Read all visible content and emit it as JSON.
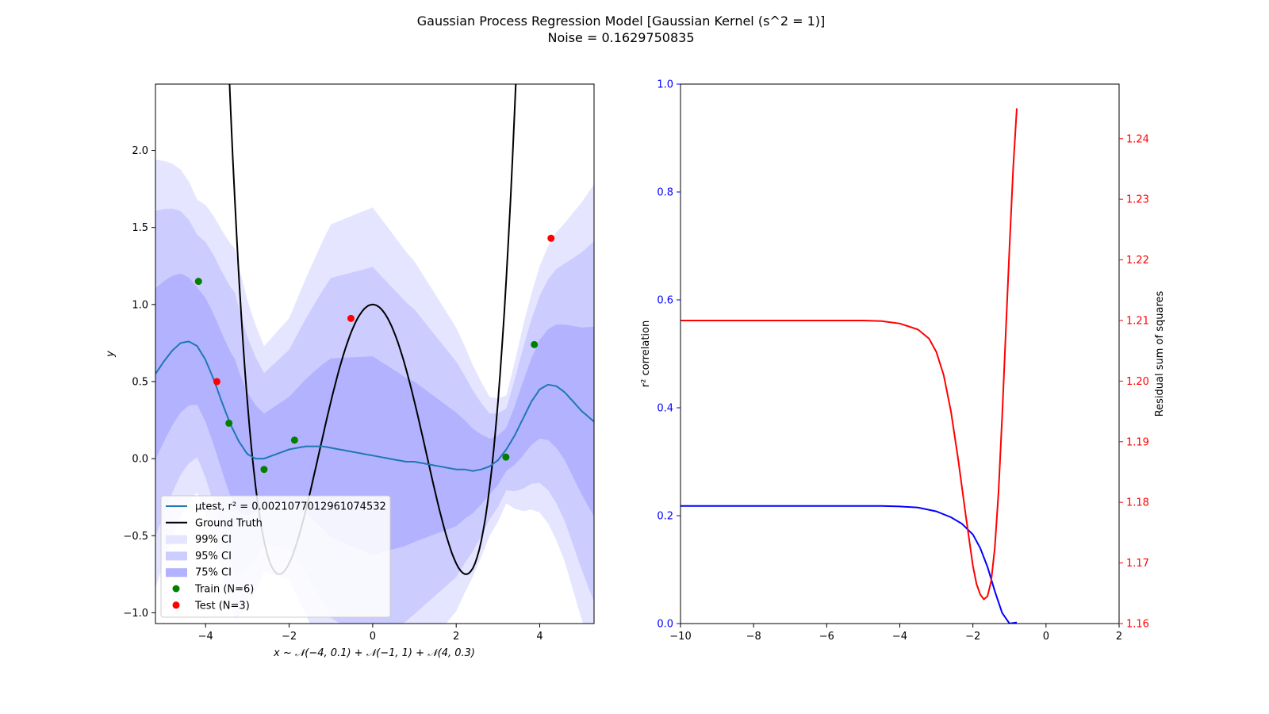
{
  "figure": {
    "title_line1": "Gaussian Process Regression Model [Gaussian Kernel (s^2 = 1)]",
    "title_line2": "Noise = 0.1629750835"
  },
  "chart_data": [
    {
      "type": "line",
      "xlabel": "x ~ 𝒩(−4, 0.1) + 𝒩(−1, 1) + 𝒩(4, 0.3)",
      "ylabel": "y",
      "xlim": [
        -5.2,
        5.3
      ],
      "ylim": [
        -1.07,
        2.43
      ],
      "xticks": [
        -4,
        -2,
        0,
        2,
        4
      ],
      "yticks": [
        -1.0,
        -0.5,
        0.0,
        0.5,
        1.0,
        1.5,
        2.0
      ],
      "legend_position": "lower-left",
      "legend": [
        {
          "label": "μtest, r² = 0.0021077012961074532",
          "kind": "line",
          "color": "#1f77b4"
        },
        {
          "label": "Ground Truth",
          "kind": "line",
          "color": "#000000"
        },
        {
          "label": "99% CI",
          "kind": "patch",
          "color": "#e5e5ff"
        },
        {
          "label": "95% CI",
          "kind": "patch",
          "color": "#ccccff"
        },
        {
          "label": "75% CI",
          "kind": "patch",
          "color": "#b2b2ff"
        },
        {
          "label": "Train (N=6)",
          "kind": "point",
          "color": "#008000"
        },
        {
          "label": "Test (N=3)",
          "kind": "point",
          "color": "#ff0000"
        }
      ],
      "mean": {
        "color": "#1f77b4",
        "x": [
          -5.2,
          -5.0,
          -4.8,
          -4.6,
          -4.4,
          -4.2,
          -4.0,
          -3.8,
          -3.6,
          -3.4,
          -3.2,
          -3.0,
          -2.8,
          -2.6,
          -2.4,
          -2.2,
          -2.0,
          -1.8,
          -1.6,
          -1.4,
          -1.2,
          -1.0,
          -0.8,
          -0.6,
          -0.4,
          -0.2,
          0.0,
          0.2,
          0.4,
          0.6,
          0.8,
          1.0,
          1.2,
          1.4,
          1.6,
          1.8,
          2.0,
          2.2,
          2.4,
          2.6,
          2.8,
          3.0,
          3.2,
          3.4,
          3.6,
          3.8,
          4.0,
          4.2,
          4.4,
          4.6,
          4.8,
          5.0,
          5.3
        ],
        "y": [
          0.55,
          0.63,
          0.7,
          0.75,
          0.76,
          0.73,
          0.64,
          0.51,
          0.36,
          0.22,
          0.11,
          0.03,
          0.0,
          0.0,
          0.02,
          0.04,
          0.06,
          0.07,
          0.08,
          0.08,
          0.08,
          0.07,
          0.06,
          0.05,
          0.04,
          0.03,
          0.02,
          0.01,
          0.0,
          -0.01,
          -0.02,
          -0.02,
          -0.03,
          -0.04,
          -0.05,
          -0.06,
          -0.07,
          -0.07,
          -0.08,
          -0.07,
          -0.05,
          -0.01,
          0.06,
          0.15,
          0.26,
          0.37,
          0.45,
          0.48,
          0.47,
          0.43,
          0.37,
          0.31,
          0.24
        ]
      },
      "ci_halfwidth_x": [
        -5.2,
        -4.2,
        -3.3,
        -2.6,
        -2.0,
        -1.0,
        0.0,
        1.0,
        2.0,
        2.8,
        3.2,
        3.6,
        4.1,
        4.6,
        5.3
      ],
      "ci_halfwidth_99": [
        1.39,
        0.95,
        1.2,
        0.73,
        0.85,
        1.45,
        1.61,
        1.3,
        0.92,
        0.45,
        0.35,
        0.6,
        0.85,
        1.1,
        1.54
      ],
      "bands": [
        {
          "name": "99% CI",
          "color": "#e5e5ff",
          "factor": 1.0
        },
        {
          "name": "95% CI",
          "color": "#ccccff",
          "factor": 0.76
        },
        {
          "name": "75% CI",
          "color": "#b2b2ff",
          "factor": 0.4
        }
      ],
      "ground_truth": {
        "color": "#000000",
        "formula": "y = 0.07*x^4 - 0.7*x^2 + 1"
      },
      "train": {
        "color": "#008000",
        "x": [
          -4.17,
          -3.44,
          -2.6,
          -1.87,
          3.19,
          3.87
        ],
        "y": [
          1.15,
          0.23,
          -0.07,
          0.12,
          0.01,
          0.74
        ]
      },
      "test": {
        "color": "#ff0000",
        "x": [
          -3.73,
          -0.52,
          4.27
        ],
        "y": [
          0.5,
          0.91,
          1.43
        ]
      }
    },
    {
      "type": "line",
      "xlabel": "",
      "ylabel": "r² correlation",
      "ylabel_right": "Residual sum of squares",
      "xlim": [
        -10,
        2
      ],
      "ylim": [
        0.0,
        1.0
      ],
      "ylim_right": [
        1.16,
        1.249
      ],
      "xticks": [
        -10,
        -8,
        -6,
        -4,
        -2,
        0,
        2
      ],
      "yticks": [
        0.0,
        0.2,
        0.4,
        0.6,
        0.8,
        1.0
      ],
      "yticks_right": [
        1.16,
        1.17,
        1.18,
        1.19,
        1.2,
        1.21,
        1.22,
        1.23,
        1.24
      ],
      "left_axis_color": "#0000ff",
      "right_axis_color": "#ff0000",
      "series": [
        {
          "name": "r² correlation",
          "axis": "left",
          "color": "#0000ff",
          "x": [
            -10,
            -8,
            -6,
            -5,
            -4.5,
            -4,
            -3.5,
            -3,
            -2.6,
            -2.3,
            -2.0,
            -1.8,
            -1.6,
            -1.4,
            -1.2,
            -1.0,
            -0.8
          ],
          "y": [
            0.218,
            0.218,
            0.218,
            0.218,
            0.218,
            0.217,
            0.215,
            0.208,
            0.197,
            0.185,
            0.165,
            0.14,
            0.105,
            0.06,
            0.02,
            0.0,
            0.002
          ]
        },
        {
          "name": "Residual sum of squares",
          "axis": "right",
          "color": "#ff0000",
          "x": [
            -10,
            -8,
            -6,
            -5,
            -4.5,
            -4,
            -3.5,
            -3.2,
            -3.0,
            -2.8,
            -2.6,
            -2.4,
            -2.2,
            -2.0,
            -1.9,
            -1.8,
            -1.7,
            -1.6,
            -1.5,
            -1.4,
            -1.3,
            -1.2,
            -1.1,
            -1.0,
            -0.9,
            -0.8
          ],
          "y": [
            1.21,
            1.21,
            1.21,
            1.21,
            1.2099,
            1.2095,
            1.2085,
            1.207,
            1.2048,
            1.201,
            1.195,
            1.187,
            1.178,
            1.1695,
            1.1665,
            1.1648,
            1.164,
            1.1645,
            1.167,
            1.1725,
            1.1815,
            1.194,
            1.208,
            1.222,
            1.235,
            1.245
          ]
        }
      ]
    }
  ]
}
